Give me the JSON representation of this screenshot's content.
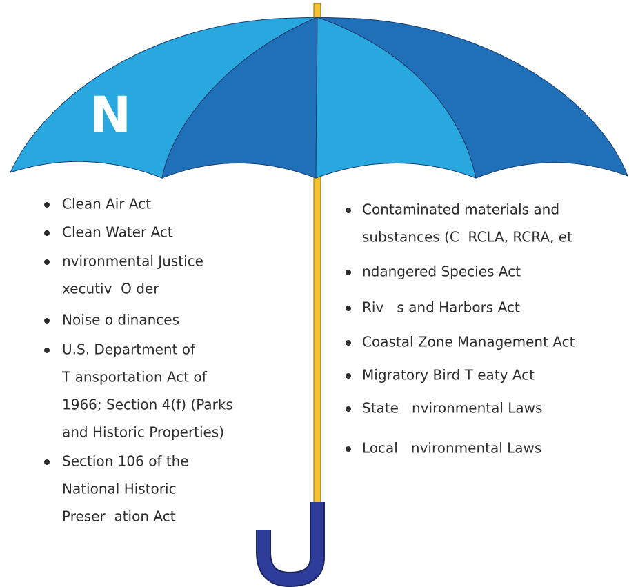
{
  "logo": "N",
  "left_list": [
    {
      "lines": [
        "Clean Air Act"
      ]
    },
    {
      "lines": [
        "Clean Water Act"
      ]
    },
    {
      "lines": [
        "nvironmental Justice",
        "xecutiv  O der"
      ]
    },
    {
      "lines": [
        "Noise o dinances"
      ]
    },
    {
      "lines": [
        "U.S. Department of",
        "T ansportation Act of",
        "1966; Section 4(f) (Parks",
        "and Historic Properties)"
      ]
    },
    {
      "lines": [
        "Section 106 of the",
        "National Historic",
        "Preser  ation Act"
      ]
    }
  ],
  "right_list": [
    {
      "lines": [
        "Contaminated materials and",
        "substances (C  RCLA, RCRA, et"
      ]
    },
    {
      "lines": [
        "ndangered Species Act"
      ]
    },
    {
      "lines": [
        "Riv   s and Harbors Act"
      ]
    },
    {
      "lines": [
        "Coastal Zone Management Act"
      ]
    },
    {
      "lines": [
        "Migratory Bird T eaty Act"
      ]
    },
    {
      "lines": [
        "State   nvironmental Laws"
      ]
    },
    {
      "lines": [
        "Local   nvironmental Laws"
      ]
    }
  ]
}
